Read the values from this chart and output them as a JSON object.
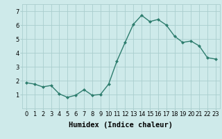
{
  "x": [
    0,
    1,
    2,
    3,
    4,
    5,
    6,
    7,
    8,
    9,
    10,
    11,
    12,
    13,
    14,
    15,
    16,
    17,
    18,
    19,
    20,
    21,
    22,
    23
  ],
  "y": [
    1.85,
    1.75,
    1.55,
    1.65,
    1.05,
    0.8,
    0.95,
    1.35,
    0.95,
    1.0,
    1.75,
    3.4,
    4.75,
    6.05,
    6.7,
    6.25,
    6.4,
    6.0,
    5.2,
    4.75,
    4.85,
    4.5,
    3.65,
    3.55
  ],
  "line_color": "#2e7d6e",
  "marker": "D",
  "marker_size": 2.0,
  "line_width": 1.0,
  "bg_color": "#ceeaea",
  "grid_color": "#aacece",
  "xlabel": "Humidex (Indice chaleur)",
  "xlabel_fontsize": 7.5,
  "ylim": [
    0.0,
    7.5
  ],
  "xlim": [
    -0.5,
    23.5
  ],
  "yticks": [
    1,
    2,
    3,
    4,
    5,
    6,
    7
  ],
  "xticks": [
    0,
    1,
    2,
    3,
    4,
    5,
    6,
    7,
    8,
    9,
    10,
    11,
    12,
    13,
    14,
    15,
    16,
    17,
    18,
    19,
    20,
    21,
    22,
    23
  ],
  "tick_fontsize": 6.0
}
